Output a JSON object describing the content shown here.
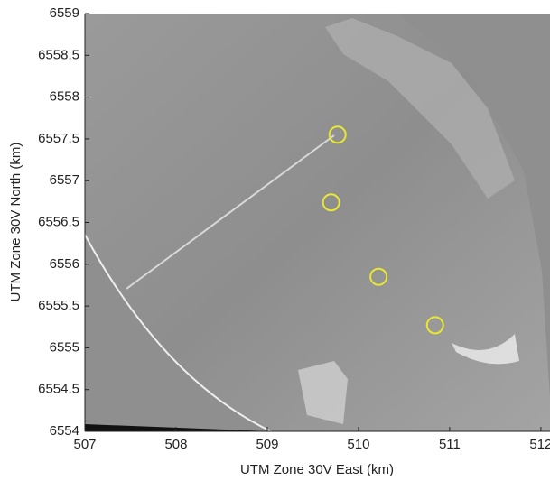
{
  "chart_data": {
    "type": "scatter",
    "xlabel": "UTM Zone 30V East (km)",
    "ylabel": "UTM Zone 30V North (km)",
    "x": [
      509.77,
      509.7,
      510.22,
      510.84
    ],
    "values": [
      6557.55,
      6556.74,
      6555.85,
      6555.27
    ],
    "color": "#e8e830",
    "xlim": [
      507,
      512.1
    ],
    "ylim": [
      6554,
      6559
    ],
    "xticks": [
      507,
      508,
      509,
      510,
      511,
      512
    ],
    "yticks": [
      6554,
      6554.5,
      6555,
      6555.5,
      6556,
      6556.5,
      6557,
      6557.5,
      6558,
      6558.5,
      6559
    ]
  }
}
